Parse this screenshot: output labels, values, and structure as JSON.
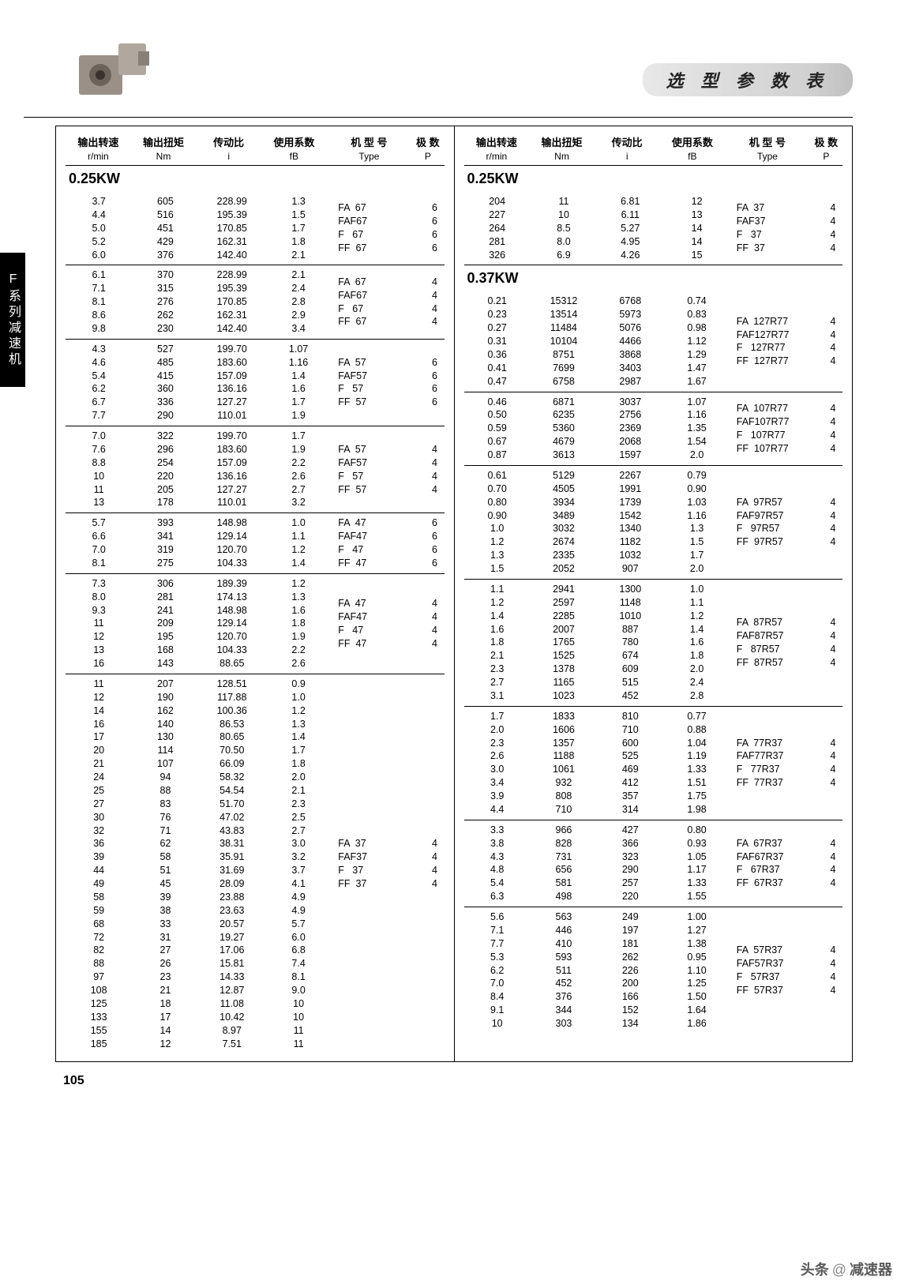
{
  "page_title": "选 型 参 数 表",
  "side_tab": "F系列减速机",
  "page_number": "105",
  "footer_author": "头条 @减速器",
  "headers": {
    "c1": "输出转速",
    "c1s": "r/min",
    "c2": "输出扭矩",
    "c2s": "Nm",
    "c3": "传动比",
    "c3s": "i",
    "c4": "使用系数",
    "c4s": "fB",
    "c5": "机 型 号",
    "c5s": "Type",
    "c6": "极 数",
    "c6s": "P"
  },
  "left": {
    "kw": "0.25KW",
    "groups": [
      {
        "rows": [
          [
            "3.7",
            "605",
            "228.99",
            "1.3"
          ],
          [
            "4.4",
            "516",
            "195.39",
            "1.5"
          ],
          [
            "5.0",
            "451",
            "170.85",
            "1.7"
          ],
          [
            "5.2",
            "429",
            "162.31",
            "1.8"
          ],
          [
            "6.0",
            "376",
            "142.40",
            "2.1"
          ]
        ],
        "types": [
          [
            "FA  67",
            "6"
          ],
          [
            "FAF67",
            "6"
          ],
          [
            "F   67",
            "6"
          ],
          [
            "FF  67",
            "6"
          ]
        ]
      },
      {
        "rows": [
          [
            "6.1",
            "370",
            "228.99",
            "2.1"
          ],
          [
            "7.1",
            "315",
            "195.39",
            "2.4"
          ],
          [
            "8.1",
            "276",
            "170.85",
            "2.8"
          ],
          [
            "8.6",
            "262",
            "162.31",
            "2.9"
          ],
          [
            "9.8",
            "230",
            "142.40",
            "3.4"
          ]
        ],
        "types": [
          [
            "FA  67",
            "4"
          ],
          [
            "FAF67",
            "4"
          ],
          [
            "F   67",
            "4"
          ],
          [
            "FF  67",
            "4"
          ]
        ]
      },
      {
        "rows": [
          [
            "4.3",
            "527",
            "199.70",
            "1.07"
          ],
          [
            "4.6",
            "485",
            "183.60",
            "1.16"
          ],
          [
            "5.4",
            "415",
            "157.09",
            "1.4"
          ],
          [
            "6.2",
            "360",
            "136.16",
            "1.6"
          ],
          [
            "6.7",
            "336",
            "127.27",
            "1.7"
          ],
          [
            "7.7",
            "290",
            "110.01",
            "1.9"
          ]
        ],
        "types": [
          [
            "FA  57",
            "6"
          ],
          [
            "FAF57",
            "6"
          ],
          [
            "F   57",
            "6"
          ],
          [
            "FF  57",
            "6"
          ]
        ]
      },
      {
        "rows": [
          [
            "7.0",
            "322",
            "199.70",
            "1.7"
          ],
          [
            "7.6",
            "296",
            "183.60",
            "1.9"
          ],
          [
            "8.8",
            "254",
            "157.09",
            "2.2"
          ],
          [
            "10",
            "220",
            "136.16",
            "2.6"
          ],
          [
            "11",
            "205",
            "127.27",
            "2.7"
          ],
          [
            "13",
            "178",
            "110.01",
            "3.2"
          ]
        ],
        "types": [
          [
            "FA  57",
            "4"
          ],
          [
            "FAF57",
            "4"
          ],
          [
            "F   57",
            "4"
          ],
          [
            "FF  57",
            "4"
          ]
        ]
      },
      {
        "rows": [
          [
            "5.7",
            "393",
            "148.98",
            "1.0"
          ],
          [
            "6.6",
            "341",
            "129.14",
            "1.1"
          ],
          [
            "7.0",
            "319",
            "120.70",
            "1.2"
          ],
          [
            "8.1",
            "275",
            "104.33",
            "1.4"
          ]
        ],
        "types": [
          [
            "FA  47",
            "6"
          ],
          [
            "FAF47",
            "6"
          ],
          [
            "F   47",
            "6"
          ],
          [
            "FF  47",
            "6"
          ]
        ]
      },
      {
        "rows": [
          [
            "7.3",
            "306",
            "189.39",
            "1.2"
          ],
          [
            "8.0",
            "281",
            "174.13",
            "1.3"
          ],
          [
            "9.3",
            "241",
            "148.98",
            "1.6"
          ],
          [
            "11",
            "209",
            "129.14",
            "1.8"
          ],
          [
            "12",
            "195",
            "120.70",
            "1.9"
          ],
          [
            "13",
            "168",
            "104.33",
            "2.2"
          ],
          [
            "16",
            "143",
            "88.65",
            "2.6"
          ]
        ],
        "types": [
          [
            "FA  47",
            "4"
          ],
          [
            "FAF47",
            "4"
          ],
          [
            "F   47",
            "4"
          ],
          [
            "FF  47",
            "4"
          ]
        ]
      },
      {
        "rows": [
          [
            "11",
            "207",
            "128.51",
            "0.9"
          ],
          [
            "12",
            "190",
            "117.88",
            "1.0"
          ],
          [
            "14",
            "162",
            "100.36",
            "1.2"
          ],
          [
            "16",
            "140",
            "86.53",
            "1.3"
          ],
          [
            "17",
            "130",
            "80.65",
            "1.4"
          ],
          [
            "20",
            "114",
            "70.50",
            "1.7"
          ],
          [
            "21",
            "107",
            "66.09",
            "1.8"
          ],
          [
            "24",
            "94",
            "58.32",
            "2.0"
          ],
          [
            "25",
            "88",
            "54.54",
            "2.1"
          ],
          [
            "27",
            "83",
            "51.70",
            "2.3"
          ],
          [
            "30",
            "76",
            "47.02",
            "2.5"
          ],
          [
            "32",
            "71",
            "43.83",
            "2.7"
          ],
          [
            "36",
            "62",
            "38.31",
            "3.0"
          ],
          [
            "39",
            "58",
            "35.91",
            "3.2"
          ],
          [
            "44",
            "51",
            "31.69",
            "3.7"
          ],
          [
            "49",
            "45",
            "28.09",
            "4.1"
          ],
          [
            "58",
            "39",
            "23.88",
            "4.9"
          ],
          [
            "59",
            "38",
            "23.63",
            "4.9"
          ],
          [
            "68",
            "33",
            "20.57",
            "5.7"
          ],
          [
            "72",
            "31",
            "19.27",
            "6.0"
          ],
          [
            "82",
            "27",
            "17.06",
            "6.8"
          ],
          [
            "88",
            "26",
            "15.81",
            "7.4"
          ],
          [
            "97",
            "23",
            "14.33",
            "8.1"
          ],
          [
            "108",
            "21",
            "12.87",
            "9.0"
          ],
          [
            "125",
            "18",
            "11.08",
            "10"
          ],
          [
            "133",
            "17",
            "10.42",
            "10"
          ],
          [
            "155",
            "14",
            "8.97",
            "11"
          ],
          [
            "185",
            "12",
            "7.51",
            "11"
          ]
        ],
        "types": [
          [
            "FA  37",
            "4"
          ],
          [
            "FAF37",
            "4"
          ],
          [
            "F   37",
            "4"
          ],
          [
            "FF  37",
            "4"
          ]
        ]
      }
    ]
  },
  "right": {
    "kw1": "0.25KW",
    "kw2": "0.37KW",
    "groups1": [
      {
        "rows": [
          [
            "204",
            "11",
            "6.81",
            "12"
          ],
          [
            "227",
            "10",
            "6.11",
            "13"
          ],
          [
            "264",
            "8.5",
            "5.27",
            "14"
          ],
          [
            "281",
            "8.0",
            "4.95",
            "14"
          ],
          [
            "326",
            "6.9",
            "4.26",
            "15"
          ]
        ],
        "types": [
          [
            "FA  37",
            "4"
          ],
          [
            "FAF37",
            "4"
          ],
          [
            "F   37",
            "4"
          ],
          [
            "FF  37",
            "4"
          ]
        ]
      }
    ],
    "groups2": [
      {
        "rows": [
          [
            "0.21",
            "15312",
            "6768",
            "0.74"
          ],
          [
            "0.23",
            "13514",
            "5973",
            "0.83"
          ],
          [
            "0.27",
            "11484",
            "5076",
            "0.98"
          ],
          [
            "0.31",
            "10104",
            "4466",
            "1.12"
          ],
          [
            "0.36",
            "8751",
            "3868",
            "1.29"
          ],
          [
            "0.41",
            "7699",
            "3403",
            "1.47"
          ],
          [
            "0.47",
            "6758",
            "2987",
            "1.67"
          ]
        ],
        "types": [
          [
            "FA  127R77",
            "4"
          ],
          [
            "FAF127R77",
            "4"
          ],
          [
            "F   127R77",
            "4"
          ],
          [
            "FF  127R77",
            "4"
          ]
        ]
      },
      {
        "rows": [
          [
            "0.46",
            "6871",
            "3037",
            "1.07"
          ],
          [
            "0.50",
            "6235",
            "2756",
            "1.16"
          ],
          [
            "0.59",
            "5360",
            "2369",
            "1.35"
          ],
          [
            "0.67",
            "4679",
            "2068",
            "1.54"
          ],
          [
            "0.87",
            "3613",
            "1597",
            "2.0"
          ]
        ],
        "types": [
          [
            "FA  107R77",
            "4"
          ],
          [
            "FAF107R77",
            "4"
          ],
          [
            "F   107R77",
            "4"
          ],
          [
            "FF  107R77",
            "4"
          ]
        ]
      },
      {
        "rows": [
          [
            "0.61",
            "5129",
            "2267",
            "0.79"
          ],
          [
            "0.70",
            "4505",
            "1991",
            "0.90"
          ],
          [
            "0.80",
            "3934",
            "1739",
            "1.03"
          ],
          [
            "0.90",
            "3489",
            "1542",
            "1.16"
          ],
          [
            "1.0",
            "3032",
            "1340",
            "1.3"
          ],
          [
            "1.2",
            "2674",
            "1182",
            "1.5"
          ],
          [
            "1.3",
            "2335",
            "1032",
            "1.7"
          ],
          [
            "1.5",
            "2052",
            "907",
            "2.0"
          ]
        ],
        "types": [
          [
            "FA  97R57",
            "4"
          ],
          [
            "FAF97R57",
            "4"
          ],
          [
            "F   97R57",
            "4"
          ],
          [
            "FF  97R57",
            "4"
          ]
        ]
      },
      {
        "rows": [
          [
            "1.1",
            "2941",
            "1300",
            "1.0"
          ],
          [
            "1.2",
            "2597",
            "1148",
            "1.1"
          ],
          [
            "1.4",
            "2285",
            "1010",
            "1.2"
          ],
          [
            "1.6",
            "2007",
            "887",
            "1.4"
          ],
          [
            "1.8",
            "1765",
            "780",
            "1.6"
          ],
          [
            "2.1",
            "1525",
            "674",
            "1.8"
          ],
          [
            "2.3",
            "1378",
            "609",
            "2.0"
          ],
          [
            "2.7",
            "1165",
            "515",
            "2.4"
          ],
          [
            "3.1",
            "1023",
            "452",
            "2.8"
          ]
        ],
        "types": [
          [
            "FA  87R57",
            "4"
          ],
          [
            "FAF87R57",
            "4"
          ],
          [
            "F   87R57",
            "4"
          ],
          [
            "FF  87R57",
            "4"
          ]
        ]
      },
      {
        "rows": [
          [
            "1.7",
            "1833",
            "810",
            "0.77"
          ],
          [
            "2.0",
            "1606",
            "710",
            "0.88"
          ],
          [
            "2.3",
            "1357",
            "600",
            "1.04"
          ],
          [
            "2.6",
            "1188",
            "525",
            "1.19"
          ],
          [
            "3.0",
            "1061",
            "469",
            "1.33"
          ],
          [
            "3.4",
            "932",
            "412",
            "1.51"
          ],
          [
            "3.9",
            "808",
            "357",
            "1.75"
          ],
          [
            "4.4",
            "710",
            "314",
            "1.98"
          ]
        ],
        "types": [
          [
            "FA  77R37",
            "4"
          ],
          [
            "FAF77R37",
            "4"
          ],
          [
            "F   77R37",
            "4"
          ],
          [
            "FF  77R37",
            "4"
          ]
        ]
      },
      {
        "rows": [
          [
            "3.3",
            "966",
            "427",
            "0.80"
          ],
          [
            "3.8",
            "828",
            "366",
            "0.93"
          ],
          [
            "4.3",
            "731",
            "323",
            "1.05"
          ],
          [
            "4.8",
            "656",
            "290",
            "1.17"
          ],
          [
            "5.4",
            "581",
            "257",
            "1.33"
          ],
          [
            "6.3",
            "498",
            "220",
            "1.55"
          ]
        ],
        "types": [
          [
            "FA  67R37",
            "4"
          ],
          [
            "FAF67R37",
            "4"
          ],
          [
            "F   67R37",
            "4"
          ],
          [
            "FF  67R37",
            "4"
          ]
        ]
      },
      {
        "rows": [
          [
            "5.6",
            "563",
            "249",
            "1.00"
          ],
          [
            "7.1",
            "446",
            "197",
            "1.27"
          ],
          [
            "7.7",
            "410",
            "181",
            "1.38"
          ],
          [
            "5.3",
            "593",
            "262",
            "0.95"
          ],
          [
            "6.2",
            "511",
            "226",
            "1.10"
          ],
          [
            "7.0",
            "452",
            "200",
            "1.25"
          ],
          [
            "8.4",
            "376",
            "166",
            "1.50"
          ],
          [
            "9.1",
            "344",
            "152",
            "1.64"
          ],
          [
            "10",
            "303",
            "134",
            "1.86"
          ]
        ],
        "types": [
          [
            "FA  57R37",
            "4"
          ],
          [
            "FAF57R37",
            "4"
          ],
          [
            "F   57R37",
            "4"
          ],
          [
            "FF  57R37",
            "4"
          ]
        ]
      }
    ]
  }
}
